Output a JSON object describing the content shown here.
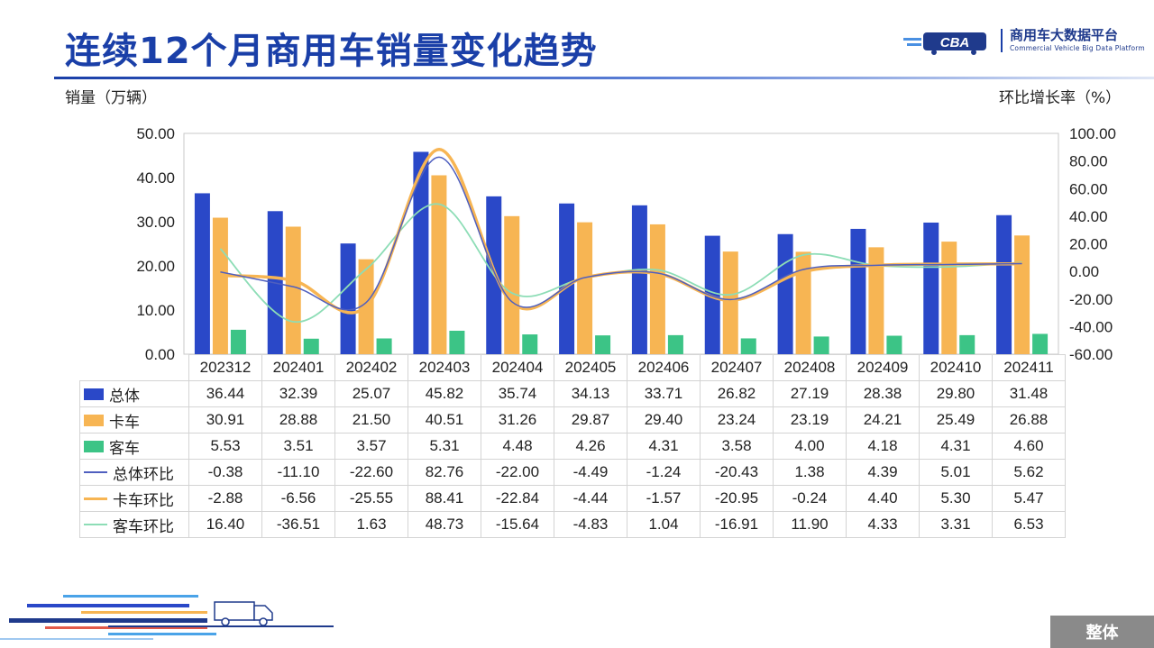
{
  "page": {
    "title": "连续12个月商用车销量变化趋势",
    "footer_button": "整体"
  },
  "logo": {
    "mark_text": "CBA",
    "name_cn": "商用车大数据平台",
    "name_en": "Commercial Vehicle Big Data Platform"
  },
  "chart_data": {
    "type": "bar",
    "categories": [
      "202312",
      "202401",
      "202402",
      "202403",
      "202404",
      "202405",
      "202406",
      "202407",
      "202408",
      "202409",
      "202410",
      "202411"
    ],
    "ylabel": "销量（万辆）",
    "y2label": "环比增长率（%）",
    "ylim": [
      0,
      50
    ],
    "yticks": [
      "50.00",
      "40.00",
      "30.00",
      "20.00",
      "10.00",
      "0.00"
    ],
    "y2lim": [
      -60,
      100
    ],
    "y2ticks": [
      "100.00",
      "80.00",
      "60.00",
      "40.00",
      "20.00",
      "0.00",
      "-20.00",
      "-40.00",
      "-60.00"
    ],
    "grid": false,
    "legend": "data-table-below",
    "series": [
      {
        "name": "总体",
        "kind": "bar",
        "axis": "left",
        "color": "#2a48c8",
        "values": [
          36.44,
          32.39,
          25.07,
          45.82,
          35.74,
          34.13,
          33.71,
          26.82,
          27.19,
          28.38,
          29.8,
          31.48
        ]
      },
      {
        "name": "卡车",
        "kind": "bar",
        "axis": "left",
        "color": "#f7b553",
        "values": [
          30.91,
          28.88,
          21.5,
          40.51,
          31.26,
          29.87,
          29.4,
          23.24,
          23.19,
          24.21,
          25.49,
          26.88
        ]
      },
      {
        "name": "客车",
        "kind": "bar",
        "axis": "left",
        "color": "#3cc486",
        "values": [
          5.53,
          3.51,
          3.57,
          5.31,
          4.48,
          4.26,
          4.31,
          3.58,
          4.0,
          4.18,
          4.31,
          4.6
        ]
      },
      {
        "name": "总体环比",
        "kind": "line",
        "axis": "right",
        "color": "#4f5fbf",
        "values": [
          -0.38,
          -11.1,
          -22.6,
          82.76,
          -22.0,
          -4.49,
          -1.24,
          -20.43,
          1.38,
          4.39,
          5.01,
          5.62
        ]
      },
      {
        "name": "卡车环比",
        "kind": "line",
        "axis": "right",
        "color": "#f7b553",
        "values": [
          -2.88,
          -6.56,
          -25.55,
          88.41,
          -22.84,
          -4.44,
          -1.57,
          -20.95,
          -0.24,
          4.4,
          5.3,
          5.47
        ]
      },
      {
        "name": "客车环比",
        "kind": "line",
        "axis": "right",
        "color": "#8dddb6",
        "values": [
          16.4,
          -36.51,
          1.63,
          48.73,
          -15.64,
          -4.83,
          1.04,
          -16.91,
          11.9,
          4.33,
          3.31,
          6.53
        ]
      }
    ]
  }
}
